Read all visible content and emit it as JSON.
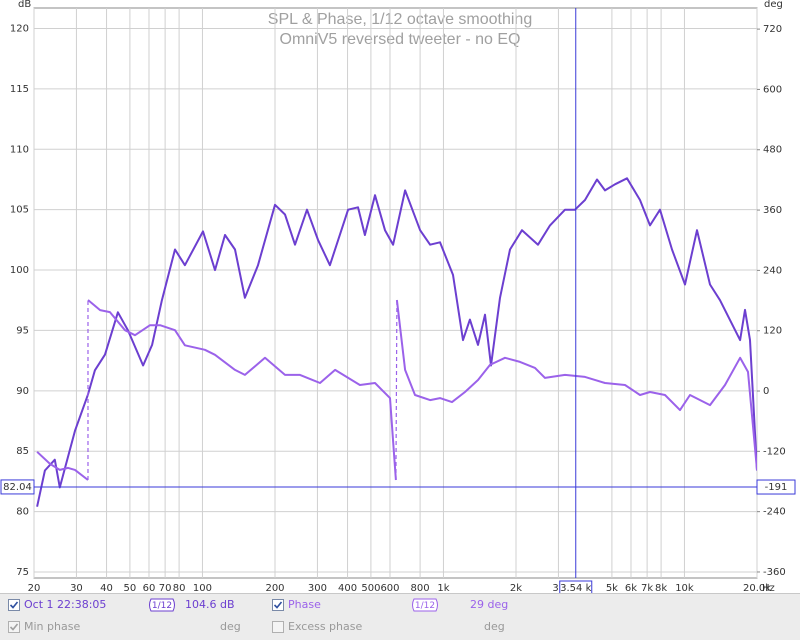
{
  "chart_data": {
    "type": "line",
    "title": "SPL & Phase, 1/12 octave smoothing",
    "subtitle": "OmniV5 reversed tweeter - no EQ",
    "y_label": "dB",
    "y2_label": "deg",
    "x_label": "Hz",
    "log_x": true,
    "grid": true,
    "xlim": [
      20,
      20000
    ],
    "ylim": [
      74.5,
      121.7
    ],
    "y2lim": [
      -372,
      762
    ],
    "xticks": [
      20,
      30,
      40,
      50,
      60,
      70,
      80,
      100,
      200,
      300,
      400,
      500,
      600,
      800,
      {
        "value": 1000,
        "label": "1k"
      },
      {
        "value": 2000,
        "label": "2k"
      },
      {
        "value": 3000,
        "label": "3k"
      },
      {
        "value": 5000,
        "label": "5k"
      },
      {
        "value": 6000,
        "label": "6k"
      },
      {
        "value": 7000,
        "label": "7k"
      },
      {
        "value": 8000,
        "label": "8k"
      },
      {
        "value": 10000,
        "label": "10k"
      },
      {
        "value": 20000,
        "label": "20.0k"
      }
    ],
    "yticks": [
      75,
      80,
      85,
      90,
      95,
      100,
      105,
      110,
      115,
      120
    ],
    "y2ticks": [
      -360,
      -240,
      -120,
      0,
      120,
      240,
      360,
      480,
      600,
      720
    ],
    "series": [
      {
        "name": "Oct 1 22:38:05",
        "color": "#6c3fd0",
        "x": [
          20.6,
          22.2,
          24.4,
          25.6,
          29.6,
          33.5,
          35.8,
          39.4,
          44.6,
          49.1,
          56.7,
          61.8,
          67.9,
          76.9,
          84.6,
          100.5,
          112.7,
          124,
          136.5,
          150,
          170,
          200,
          220,
          242,
          271.6,
          301.7,
          338,
          402,
          442,
          472,
          520,
          572,
          618,
          693,
          800,
          880,
          968,
          1095,
          1205,
          1288,
          1391,
          1487,
          1575,
          1717,
          1889,
          2117,
          2468,
          2768,
          3195,
          3515,
          3868,
          4337,
          4681,
          5150,
          5776,
          6540,
          7194,
          7916,
          8878,
          10050,
          11270,
          12770,
          14040,
          17010,
          17840,
          18710,
          20000
        ],
        "values": [
          80.4,
          83.4,
          84.3,
          82.0,
          86.7,
          89.7,
          91.7,
          93.0,
          96.5,
          95.0,
          92.1,
          93.8,
          97.5,
          101.7,
          100.4,
          103.2,
          100.0,
          102.9,
          101.7,
          97.7,
          100.4,
          105.4,
          104.6,
          102.1,
          105.0,
          102.5,
          100.4,
          105.0,
          105.2,
          102.9,
          106.2,
          103.3,
          102.1,
          106.6,
          103.3,
          102.1,
          102.3,
          99.6,
          94.2,
          95.9,
          93.8,
          96.3,
          92.1,
          97.7,
          101.7,
          103.3,
          102.1,
          103.7,
          105.0,
          105.0,
          105.8,
          107.5,
          106.6,
          107.1,
          107.6,
          105.8,
          103.7,
          105.0,
          101.7,
          98.8,
          103.3,
          98.8,
          97.5,
          94.2,
          96.7,
          94.2,
          83.4
        ]
      },
      {
        "name": "Phase",
        "color": "#9b62ea",
        "axis": "y2",
        "x": [
          20.6,
          23.3,
          25.6,
          27.7,
          29.6,
          33.5,
          33.5,
          33.5,
          37.6,
          41.3,
          47.7,
          52.5,
          60.6,
          66.7,
          76.9,
          84.6,
          102.4,
          112.7,
          136.5,
          150,
          181.8,
          220,
          254,
          307.5,
          355,
          450,
          520,
          600,
          635,
          638,
          641,
          693,
          762,
          880,
          968,
          1085,
          1229,
          1391,
          1560,
          1801,
          2078,
          2398,
          2638,
          3195,
          3868,
          4681,
          5666,
          6540,
          7194,
          8302,
          9584,
          10545,
          12770,
          14730,
          17010,
          18360,
          20000
        ],
        "values": [
          -121,
          -145,
          -157,
          -153,
          -157,
          -177,
          null,
          181,
          161,
          157,
          121,
          111,
          131,
          131,
          121,
          91,
          82,
          72,
          42,
          32,
          66,
          32,
          32,
          16,
          42,
          12,
          16,
          -14,
          -177,
          null,
          181,
          42,
          -8,
          -18,
          -14,
          -22,
          -2,
          22,
          52,
          66,
          58,
          46,
          26,
          32,
          28,
          16,
          12,
          -8,
          -2,
          -8,
          -38,
          -8,
          -28,
          12,
          66,
          38,
          -157
        ]
      }
    ],
    "cursor": {
      "x": {
        "value": 3540,
        "label": "3.54 k"
      },
      "y": 82.04,
      "y2": -191
    },
    "readout": {
      "smoothing": "1/12",
      "values": [
        104.6,
        29
      ],
      "value_labels": [
        "104.6 dB",
        "29 deg"
      ],
      "extra": [
        {
          "name": "Min phase",
          "unit": "deg"
        },
        {
          "name": "Excess phase",
          "unit": "deg"
        }
      ]
    }
  }
}
